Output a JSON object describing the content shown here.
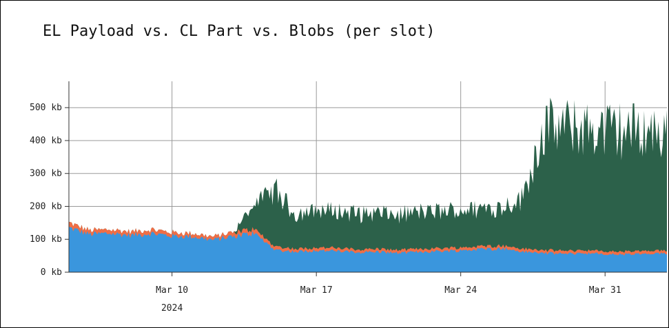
{
  "chart_data": {
    "type": "area",
    "title": "EL Payload vs. CL Part vs. Blobs (per slot)",
    "xlabel": "",
    "ylabel": "",
    "y_unit": "kb",
    "ylim": [
      0,
      580
    ],
    "xlim": [
      "2024-03-05",
      "2024-04-03"
    ],
    "grid": true,
    "stacked": true,
    "y_ticks": [
      {
        "value": 0,
        "label": "0 kb"
      },
      {
        "value": 100,
        "label": "100 kb"
      },
      {
        "value": 200,
        "label": "200 kb"
      },
      {
        "value": 300,
        "label": "300 kb"
      },
      {
        "value": 400,
        "label": "400 kb"
      },
      {
        "value": 500,
        "label": "500 kb"
      }
    ],
    "x_ticks": [
      {
        "value": "2024-03-10",
        "label": "Mar 10",
        "sublabel": "2024"
      },
      {
        "value": "2024-03-17",
        "label": "Mar 17",
        "sublabel": ""
      },
      {
        "value": "2024-03-24",
        "label": "Mar 24",
        "sublabel": ""
      },
      {
        "value": "2024-03-31",
        "label": "Mar 31",
        "sublabel": ""
      }
    ],
    "x": [
      "2024-03-05",
      "2024-03-06",
      "2024-03-07",
      "2024-03-08",
      "2024-03-09",
      "2024-03-10",
      "2024-03-11",
      "2024-03-12",
      "2024-03-13",
      "2024-03-14",
      "2024-03-15",
      "2024-03-16",
      "2024-03-17",
      "2024-03-18",
      "2024-03-19",
      "2024-03-20",
      "2024-03-21",
      "2024-03-22",
      "2024-03-23",
      "2024-03-24",
      "2024-03-25",
      "2024-03-26",
      "2024-03-27",
      "2024-03-28",
      "2024-03-29",
      "2024-03-30",
      "2024-03-31",
      "2024-04-01",
      "2024-04-02",
      "2024-04-03"
    ],
    "series": [
      {
        "color": "#3a96dd",
        "values": [
          135,
          115,
          118,
          112,
          118,
          110,
          108,
          98,
          110,
          118,
          68,
          62,
          66,
          64,
          60,
          62,
          58,
          62,
          64,
          66,
          70,
          72,
          62,
          58,
          56,
          58,
          54,
          54,
          55,
          56
        ]
      },
      {
        "color": "#ef6e46",
        "values": [
          15,
          12,
          12,
          11,
          12,
          11,
          10,
          10,
          12,
          13,
          10,
          9,
          9,
          9,
          9,
          9,
          9,
          9,
          9,
          9,
          9,
          9,
          9,
          9,
          9,
          9,
          9,
          9,
          9,
          9
        ]
      },
      {
        "color": "#2c614a",
        "values": [
          0,
          0,
          0,
          0,
          0,
          0,
          0,
          0,
          0,
          80,
          170,
          105,
          115,
          112,
          110,
          108,
          106,
          112,
          112,
          114,
          116,
          118,
          155,
          370,
          375,
          372,
          368,
          370,
          368,
          350
        ]
      }
    ]
  }
}
